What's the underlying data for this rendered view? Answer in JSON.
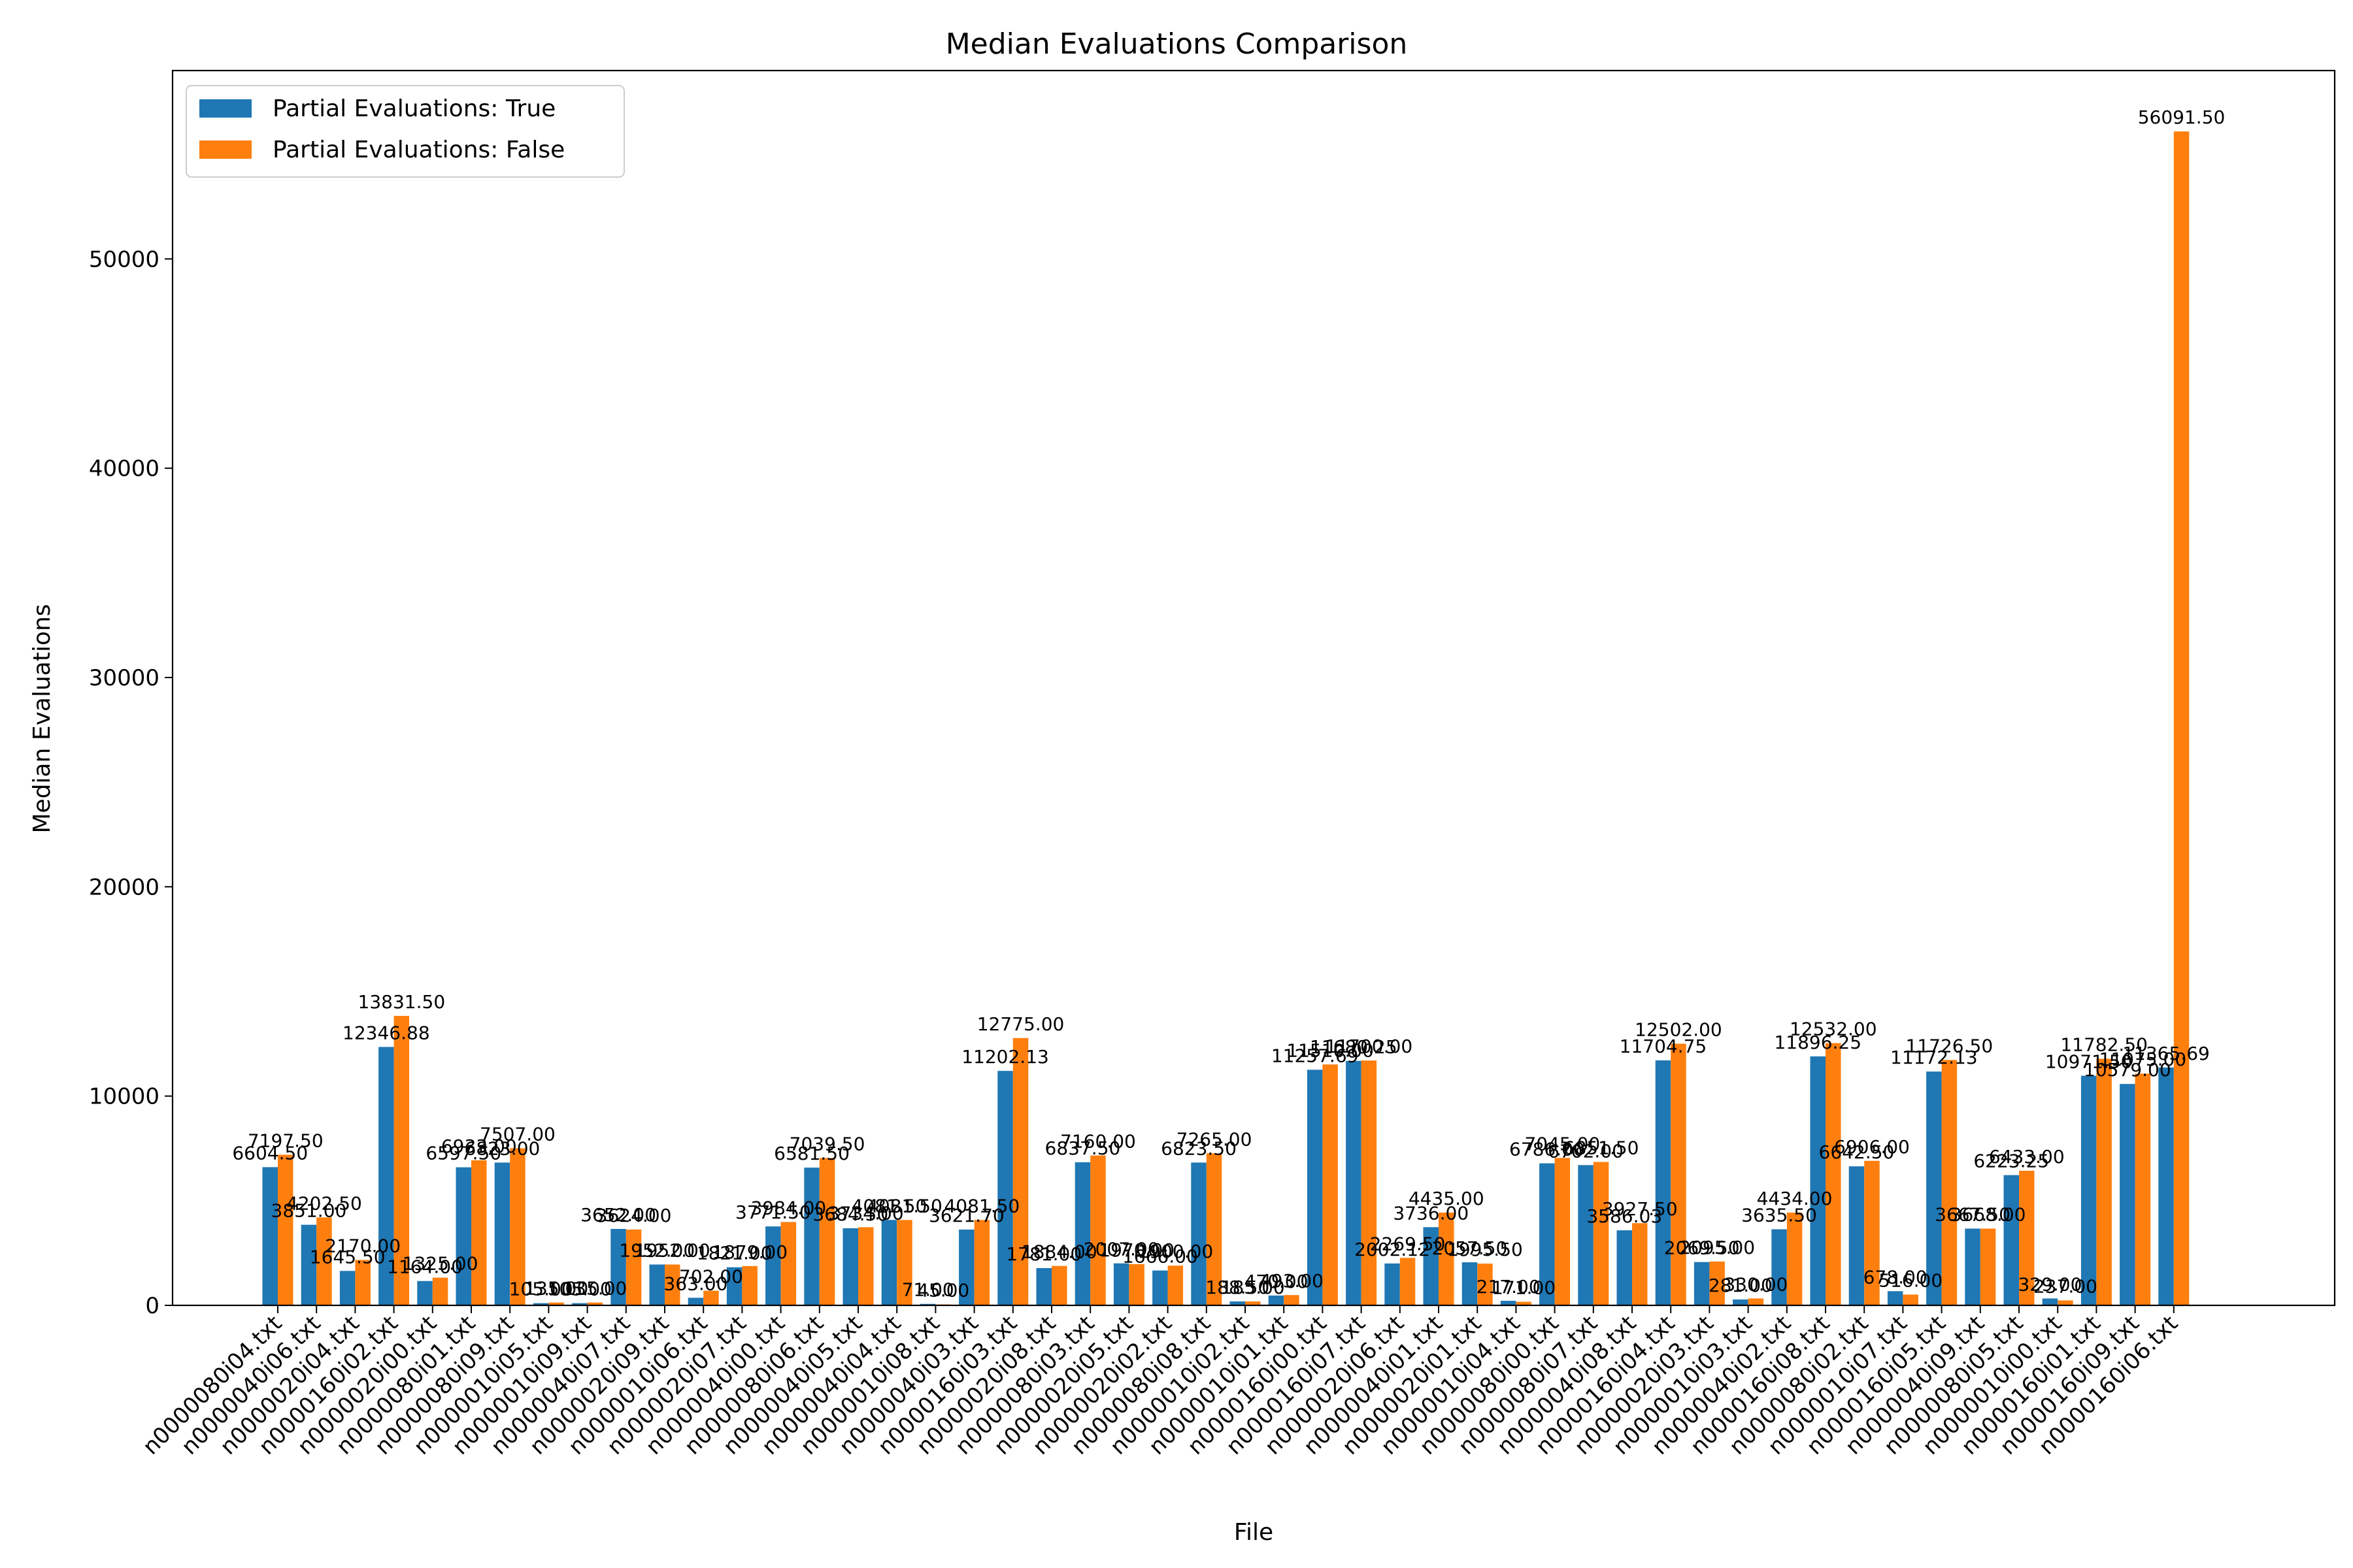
{
  "chart_data": {
    "type": "bar",
    "title": "Median Evaluations Comparison",
    "xlabel": "File",
    "ylabel": "Median Evaluations",
    "ylim": [
      0,
      59000
    ],
    "yticks": [
      0,
      10000,
      20000,
      30000,
      40000,
      50000
    ],
    "grid": false,
    "legend_position": "top-left",
    "colors": {
      "true": "#1f77b4",
      "false": "#ff7f0e"
    },
    "categories": [
      "n0000080i04.txt",
      "n0000040i06.txt",
      "n0000020i04.txt",
      "n0000160i02.txt",
      "n0000020i00.txt",
      "n0000080i01.txt",
      "n0000080i09.txt",
      "n0000010i05.txt",
      "n0000010i09.txt",
      "n0000040i07.txt",
      "n0000020i09.txt",
      "n0000010i06.txt",
      "n0000020i07.txt",
      "n0000040i00.txt",
      "n0000080i06.txt",
      "n0000040i05.txt",
      "n0000040i04.txt",
      "n0000010i08.txt",
      "n0000040i03.txt",
      "n0000160i03.txt",
      "n0000020i08.txt",
      "n0000080i03.txt",
      "n0000020i05.txt",
      "n0000020i02.txt",
      "n0000080i08.txt",
      "n0000010i02.txt",
      "n0000010i01.txt",
      "n0000160i00.txt",
      "n0000160i07.txt",
      "n0000020i06.txt",
      "n0000040i01.txt",
      "n0000020i01.txt",
      "n0000010i04.txt",
      "n0000080i00.txt",
      "n0000080i07.txt",
      "n0000040i08.txt",
      "n0000160i04.txt",
      "n0000020i03.txt",
      "n0000010i03.txt",
      "n0000040i02.txt",
      "n0000160i08.txt",
      "n0000080i02.txt",
      "n0000010i07.txt",
      "n0000160i05.txt",
      "n0000040i09.txt",
      "n0000080i05.txt",
      "n0000010i00.txt",
      "n0000160i01.txt",
      "n0000160i09.txt",
      "n0000160i06.txt"
    ],
    "series": [
      {
        "name": "Partial Evaluations: True",
        "values": [
          6604.5,
          3851.0,
          1645.5,
          12346.88,
          1164.0,
          6597.5,
          6823.0,
          105.0,
          105.0,
          3652.0,
          1952.0,
          363.0,
          1821.0,
          3771.5,
          6581.5,
          3684.5,
          4081.5,
          71.0,
          3621.7,
          11202.13,
          1781.0,
          6837.5,
          2007.0,
          1666.0,
          6823.5,
          188.5,
          470.0,
          11257.69,
          11680.25,
          2002.12,
          3736.0,
          2057.5,
          217.0,
          6786.0,
          6702.0,
          3586.03,
          11704.75,
          2069.5,
          281.0,
          3635.5,
          11896.25,
          6642.5,
          678.0,
          11172.13,
          3667.5,
          6223.25,
          329.0,
          10971.5,
          10579.0,
          11365.69
        ],
        "labels": [
          "6604.50",
          "3851.00",
          "1645.50",
          "12346.88",
          "1164.00",
          "6597.50",
          "6823.00",
          "105.00",
          "105.00",
          "3652.00",
          "1952.00",
          "363.00",
          "1821.00",
          "3771.50",
          "6581.50",
          "3684.50",
          "4081.50",
          "71.00",
          "3621.70",
          "11202.13",
          "1781.00",
          "6837.50",
          "2007.00",
          "1666.00",
          "6823.50",
          "188.50",
          "470.00",
          "11257.69",
          "11680.25",
          "2002.12",
          "3736.00",
          "2057.50",
          "217.00",
          "6786.00",
          "6702.00",
          "3586.03",
          "11704.75",
          "2069.50",
          "281.00",
          "3635.50",
          "11896.25",
          "6642.50",
          "678.00",
          "11172.13",
          "3667.50",
          "6223.25",
          "329.00",
          "10971.50",
          "10579.00",
          "11365.69"
        ]
      },
      {
        "name": "Partial Evaluations: False",
        "values": [
          7197.5,
          4202.5,
          2170.0,
          13831.5,
          1325.0,
          6933.0,
          7507.0,
          135.0,
          135.0,
          3624.0,
          1952.0,
          702.0,
          1879.0,
          3984.0,
          7039.5,
          3734.0,
          4081.5,
          45.0,
          4081.5,
          12775.0,
          1884.0,
          7160.0,
          1970.0,
          1900.0,
          7265.0,
          185.0,
          493.0,
          11510.0,
          11700.0,
          2269.5,
          4435.0,
          1995.5,
          171.0,
          7045.0,
          6851.5,
          3927.5,
          12502.0,
          2095.0,
          330.0,
          4434.0,
          12532.0,
          6906.0,
          516.0,
          11726.5,
          3668.0,
          6433.0,
          237.0,
          11782.5,
          11075.0,
          56091.5
        ],
        "labels": [
          "7197.50",
          "4202.50",
          "2170.00",
          "13831.50",
          "1325.00",
          "6933.00",
          "7507.00",
          "135.00",
          "135.00",
          "3624.00",
          "1952.00",
          "702.00",
          "1879.00",
          "3984.00",
          "7039.50",
          "3734.00",
          "4081.50",
          "45.00",
          "4081.50",
          "12775.00",
          "1884.00",
          "7160.00",
          "1970.00",
          "1900.00",
          "7265.00",
          "185.00",
          "493.00",
          "11510.00",
          "11700.00",
          "2269.50",
          "4435.00",
          "1995.50",
          "171.00",
          "7045.00",
          "6851.50",
          "3927.50",
          "12502.00",
          "2095.00",
          "330.00",
          "4434.00",
          "12532.00",
          "6906.00",
          "516.00",
          "11726.50",
          "3668.00",
          "6433.00",
          "237.00",
          "11782.50",
          "11075.00",
          "56091.50"
        ]
      }
    ]
  }
}
